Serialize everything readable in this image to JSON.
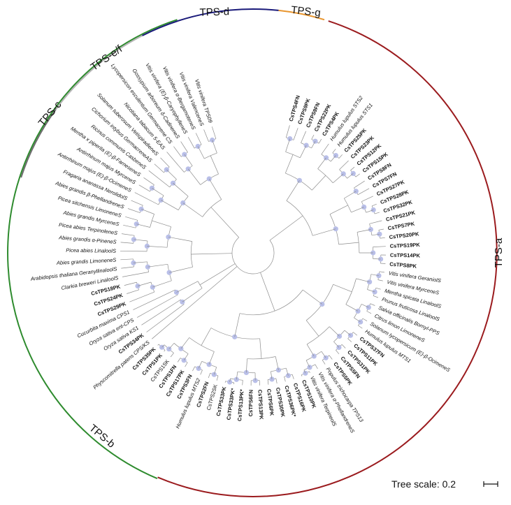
{
  "clades": [
    {
      "label": "TPS-a",
      "color": "#9b1b1e"
    },
    {
      "label": "TPS-b",
      "color": "#2e8b2e"
    },
    {
      "label": "TPS-c",
      "color": "#6d6d6d"
    },
    {
      "label": "TPS-e/f",
      "color": "#b5b5b5"
    },
    {
      "label": "TPS-d",
      "color": "#1a1a7a"
    },
    {
      "label": "TPS-g",
      "color": "#e8952e"
    }
  ],
  "leaves": [
    {
      "label": "CsTPS4FN",
      "style": "bold"
    },
    {
      "label": "CsTPS9PK",
      "style": "bold"
    },
    {
      "label": "CsTPS9FN",
      "style": "bold"
    },
    {
      "label": "CsTPS22PK",
      "style": "bold"
    },
    {
      "label": "CsTPS4PK",
      "style": "bold"
    },
    {
      "label": "Humulus lupulus STS2",
      "style": "italic"
    },
    {
      "label": "Humulus lupulus STS1",
      "style": "italic"
    },
    {
      "label": "CsTPS25PK",
      "style": "bold"
    },
    {
      "label": "CsTPS23PK",
      "style": "bold"
    },
    {
      "label": "CsTPS12PK",
      "style": "bold"
    },
    {
      "label": "CsTPS15PK",
      "style": "bold"
    },
    {
      "label": "CsTPS8FN",
      "style": "bold"
    },
    {
      "label": "CsTPS7FN",
      "style": "bold"
    },
    {
      "label": "CsTPS27PK",
      "style": "bold"
    },
    {
      "label": "CsTPS28PK",
      "style": "bold"
    },
    {
      "label": "CsTPS32PK",
      "style": "bold"
    },
    {
      "label": "CsTPS21PK",
      "style": "bold"
    },
    {
      "label": "CsTPS7PK",
      "style": "bold"
    },
    {
      "label": "CsTPS20PK",
      "style": "bold"
    },
    {
      "label": "CsTPS19PK",
      "style": "bold"
    },
    {
      "label": "CsTPS14PK",
      "style": "bold"
    },
    {
      "label": "CsTPS8PK",
      "style": "bold"
    },
    {
      "label": "Vitis vinifera GeraniolS",
      "style": "italic"
    },
    {
      "label": "Vitis vinifera MyrceneS",
      "style": "italic"
    },
    {
      "label": "Mentha spicata LinaloolS",
      "style": "italic"
    },
    {
      "label": "Prunus fruticosa LinaloolS",
      "style": "italic"
    },
    {
      "label": "Salvia officinalis Bornyl-PPS",
      "style": "italic"
    },
    {
      "label": "Citrus limon LimoneneS",
      "style": "italic"
    },
    {
      "label": "Solanum lycopersicum (E)-β-OcimeneS",
      "style": "italic"
    },
    {
      "label": "Humulus lupulus MTS1",
      "style": "italic"
    },
    {
      "label": "CsTPS37FN",
      "style": "bold"
    },
    {
      "label": "CsTPS11PK",
      "style": "bold"
    },
    {
      "label": "CsTPS31PK",
      "style": "bold"
    },
    {
      "label": "CsTPS5FN",
      "style": "bold"
    },
    {
      "label": "CsTPS5PK",
      "style": "bold"
    },
    {
      "label": "Populus trichocarpa TPS13",
      "style": "italic"
    },
    {
      "label": "Vitis vinifera α-PhellandreneS",
      "style": "italic"
    },
    {
      "label": "Vitis vinifera TerpineolS",
      "style": "italic"
    },
    {
      "label": "CsTPS10PK",
      "style": "bold"
    },
    {
      "label": "CsTPS16PK",
      "style": "bold"
    },
    {
      "label": "CsTPS36PK*",
      "style": "bold"
    },
    {
      "label": "CsTPS30PK",
      "style": "bold"
    },
    {
      "label": "CsTPS6PK",
      "style": "bold"
    },
    {
      "label": "CsTPS13PK",
      "style": "bold"
    },
    {
      "label": "CsTPS6FN",
      "style": "bold"
    },
    {
      "label": "CsTPS13PK*",
      "style": "bold"
    },
    {
      "label": "CsTPS33PK*",
      "style": "bold"
    },
    {
      "label": "CsTPS33PK",
      "style": "bold"
    },
    {
      "label": "CsTPS2SK",
      "style": "normal"
    },
    {
      "label": "CsTPS2FN",
      "style": "bold"
    },
    {
      "label": "Humulus lupulus MTS2",
      "style": "italic"
    },
    {
      "label": "CsTPS3FN",
      "style": "bold"
    },
    {
      "label": "CsTPS17PK",
      "style": "bold"
    },
    {
      "label": "CsTPS1FN",
      "style": "bold"
    },
    {
      "label": "CsTPS1SK",
      "style": "normal"
    },
    {
      "label": "CsTPS1PK",
      "style": "bold"
    },
    {
      "label": "CsTPS35PK",
      "style": "bold"
    },
    {
      "label": "Physcomitrella patens CPS/KS",
      "style": "italic"
    },
    {
      "label": "CsTPS34PK",
      "style": "bold"
    },
    {
      "label": "Oryza sativa KS1",
      "style": "italic"
    },
    {
      "label": "Oryza sativa ent-CPS",
      "style": "italic"
    },
    {
      "label": "Cucurbita maxima CPS1",
      "style": "italic"
    },
    {
      "label": "CsTPS29PK",
      "style": "bold"
    },
    {
      "label": "CsTPS24PK",
      "style": "bold"
    },
    {
      "label": "CsTPS18PK",
      "style": "bold"
    },
    {
      "label": "Clarkia breweri LinaloolS",
      "style": "italic"
    },
    {
      "label": "Arabidopsis thaliana GeranyllinaloolS",
      "style": "italic"
    },
    {
      "label": "Abies grandis LimoneneS",
      "style": "italic"
    },
    {
      "label": "Picea abies LinaloolS",
      "style": "italic"
    },
    {
      "label": "Abies grandis α-PineneS",
      "style": "italic"
    },
    {
      "label": "Picea abies TerpinoleneS",
      "style": "italic"
    },
    {
      "label": "Abies grandis MyrceneS",
      "style": "italic"
    },
    {
      "label": "Picea sitchensis LimoneneS",
      "style": "italic"
    },
    {
      "label": "Abies grandis β-PhellandreneS",
      "style": "italic"
    },
    {
      "label": "Fragaria ananassa NerolidolS",
      "style": "italic"
    },
    {
      "label": "Antirrhinum majus (E)-β-OcimeneS",
      "style": "italic"
    },
    {
      "label": "Antirrhinum majus MyrceneS",
      "style": "italic"
    },
    {
      "label": "Mentha x piperita (E)-β-FarneseneS",
      "style": "italic"
    },
    {
      "label": "Ricinus communis CasbeneS",
      "style": "italic"
    },
    {
      "label": "Cichorium intybus GermacreneAS",
      "style": "italic"
    },
    {
      "label": "Solanum tuberosum VetispiradieneS",
      "style": "italic"
    },
    {
      "label": "Nicotiana tabacum 5-EAS",
      "style": "italic"
    },
    {
      "label": "Lycopersicon esculentum Germacrene CS",
      "style": "italic"
    },
    {
      "label": "Gossypium arboreum δ-CadineneS",
      "style": "italic"
    },
    {
      "label": "Vitis vinifera (E)-β-CaryophylleneS",
      "style": "italic"
    },
    {
      "label": "Vitis vinifera α-BergamoteneS",
      "style": "italic"
    },
    {
      "label": "Vitis vinifera ValenceneS",
      "style": "italic"
    },
    {
      "label": "Vitis vinifera TPS09",
      "style": "italic"
    }
  ],
  "scale": {
    "label": "Tree scale: 0.2"
  }
}
